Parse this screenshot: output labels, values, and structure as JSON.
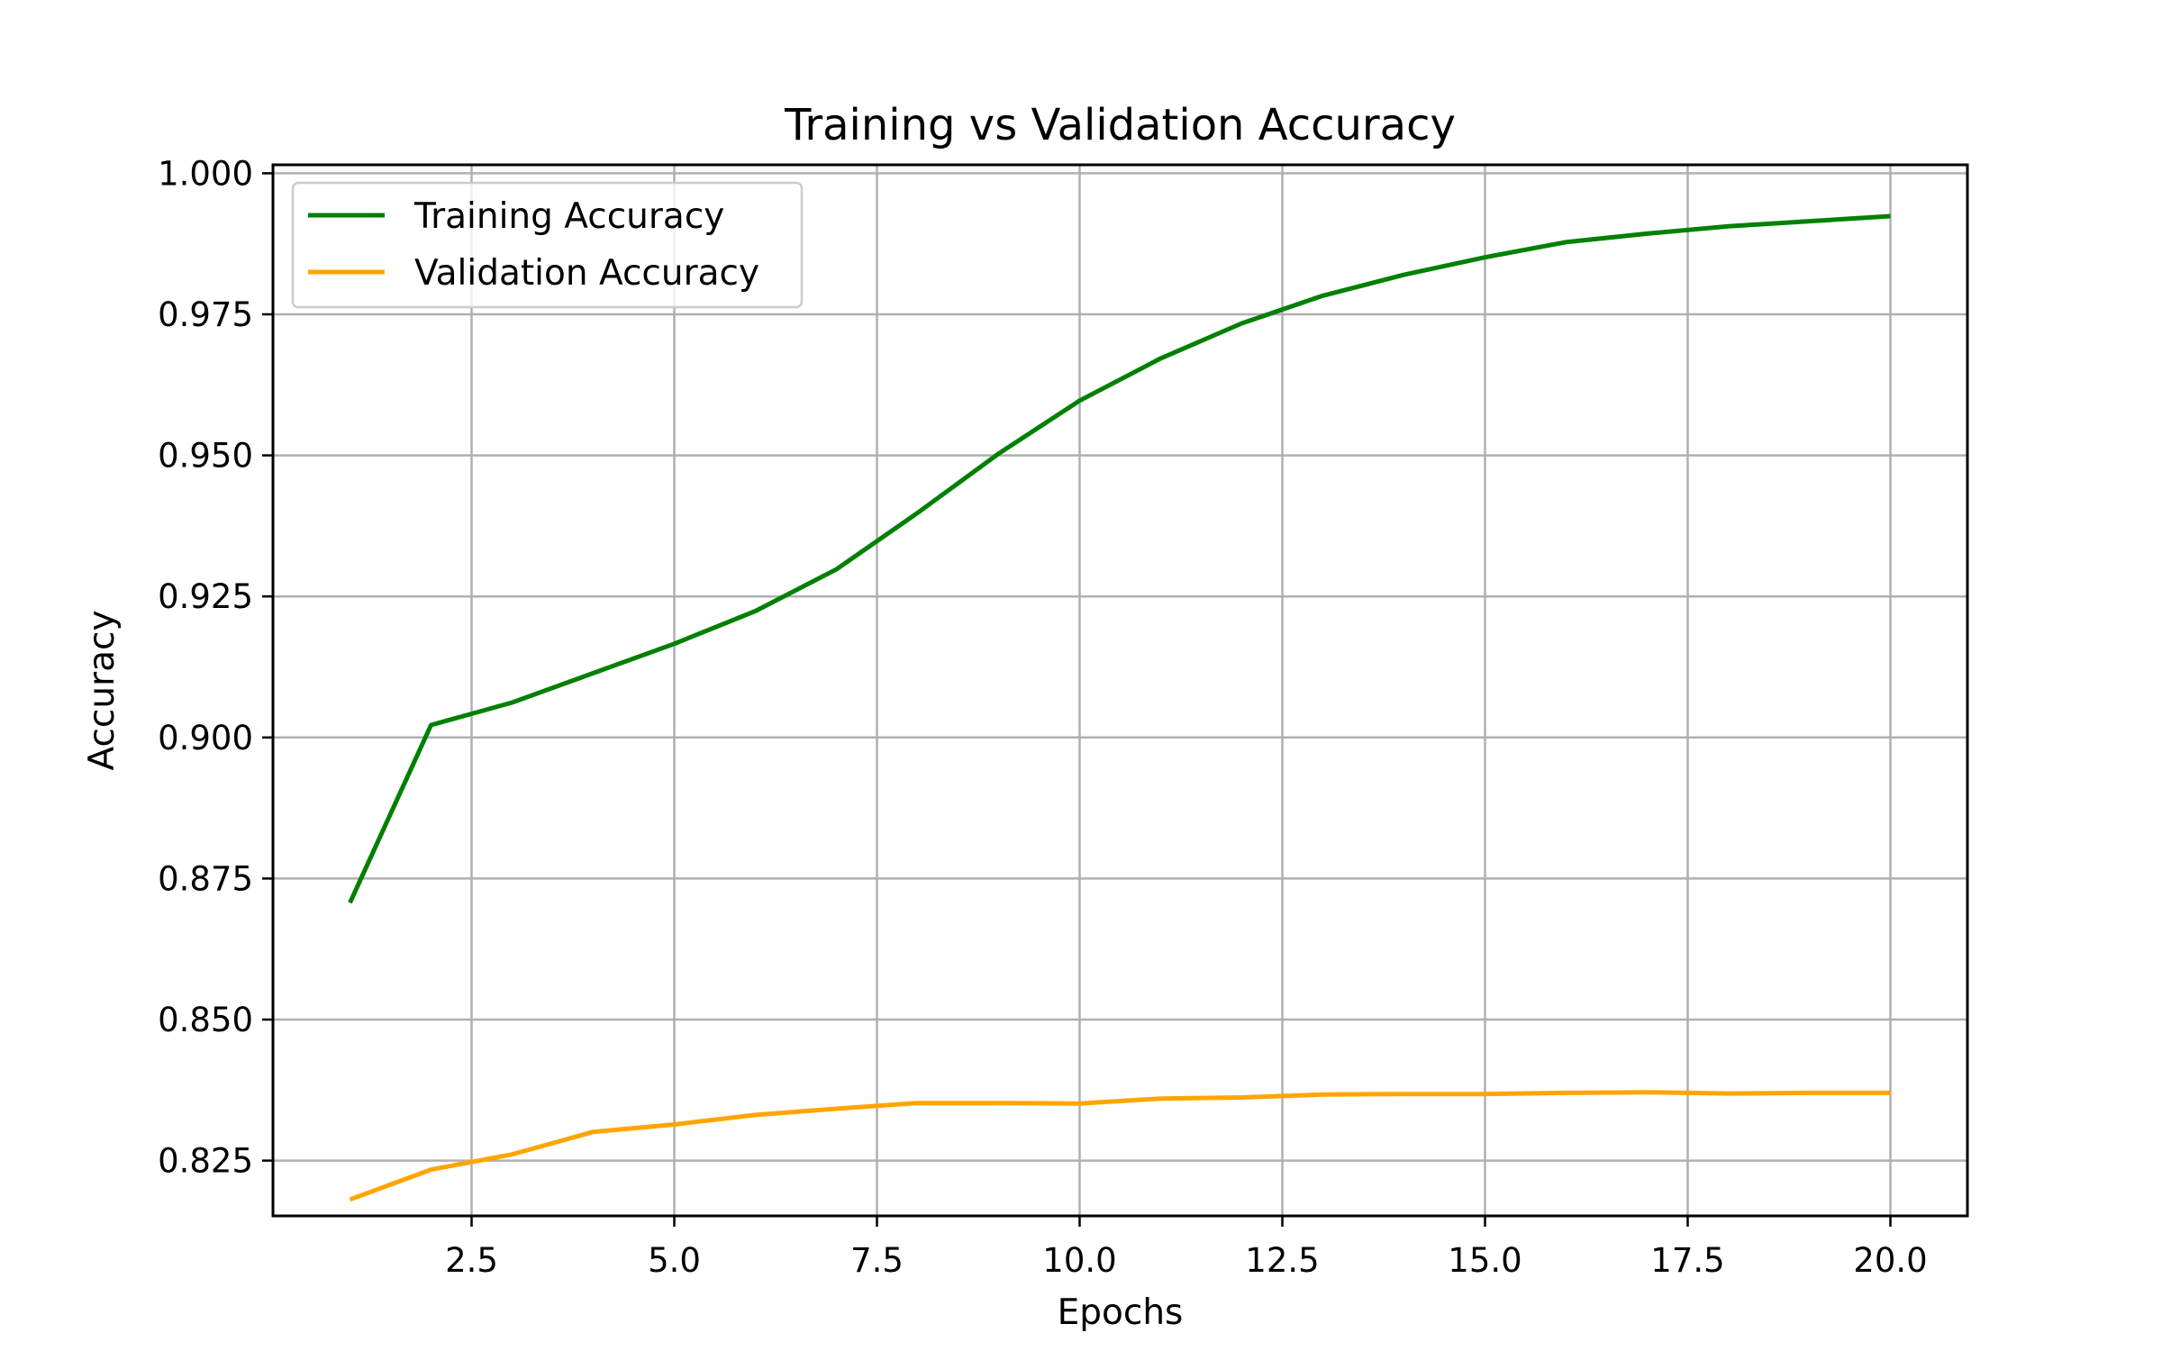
{
  "chart_data": {
    "type": "line",
    "title": "Training vs Validation Accuracy",
    "xlabel": "Epochs",
    "ylabel": "Accuracy",
    "x": [
      1,
      2,
      3,
      4,
      5,
      6,
      7,
      8,
      9,
      10,
      11,
      12,
      13,
      14,
      15,
      16,
      17,
      18,
      19,
      20
    ],
    "series": [
      {
        "name": "Training Accuracy",
        "color": "#008000",
        "values": [
          0.8707,
          0.9022,
          0.9062,
          0.9114,
          0.9166,
          0.9224,
          0.9298,
          0.9398,
          0.9503,
          0.9597,
          0.9672,
          0.9734,
          0.9783,
          0.982,
          0.9851,
          0.9878,
          0.9893,
          0.9906,
          0.9915,
          0.9924
        ]
      },
      {
        "name": "Validation Accuracy",
        "color": "#ffa500",
        "values": [
          0.8181,
          0.8234,
          0.8261,
          0.8301,
          0.8314,
          0.8331,
          0.8342,
          0.8352,
          0.8352,
          0.8351,
          0.836,
          0.8362,
          0.8367,
          0.8368,
          0.8368,
          0.837,
          0.8371,
          0.8369,
          0.837,
          0.837
        ]
      }
    ],
    "xlim": [
      0.05,
      20.95
    ],
    "ylim": [
      0.8152,
      1.0015
    ],
    "xticks": [
      2.5,
      5.0,
      7.5,
      10.0,
      12.5,
      15.0,
      17.5,
      20.0
    ],
    "xtick_labels": [
      "2.5",
      "5.0",
      "7.5",
      "10.0",
      "12.5",
      "15.0",
      "17.5",
      "20.0"
    ],
    "yticks": [
      0.825,
      0.85,
      0.875,
      0.9,
      0.925,
      0.95,
      0.975,
      1.0
    ],
    "ytick_labels": [
      "0.825",
      "0.850",
      "0.875",
      "0.900",
      "0.925",
      "0.950",
      "0.975",
      "1.000"
    ],
    "grid": true,
    "legend_position": "top-left"
  }
}
